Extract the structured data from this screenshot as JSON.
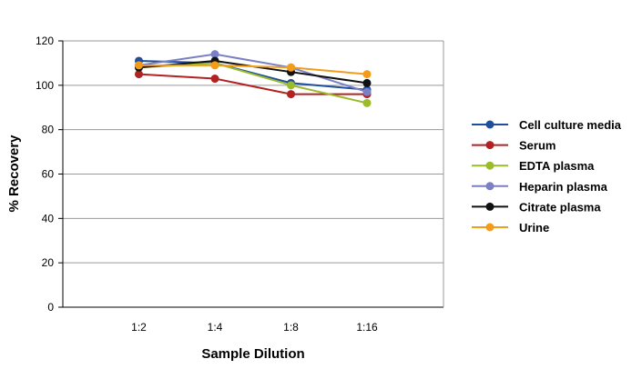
{
  "chart_data": {
    "type": "line",
    "categories": [
      "1:2",
      "1:4",
      "1:8",
      "1:16"
    ],
    "xlabel": "Sample Dilution",
    "ylabel": "% Recovery",
    "ylim": [
      0,
      120
    ],
    "yticks": [
      0,
      20,
      40,
      60,
      80,
      100,
      120
    ],
    "grid": true,
    "legend_position": "right",
    "series": [
      {
        "name": "Cell culture media",
        "color": "#1f4e9c",
        "values": [
          111,
          110,
          101,
          98
        ]
      },
      {
        "name": "Serum",
        "color": "#b22222",
        "values": [
          105,
          103,
          96,
          96
        ]
      },
      {
        "name": "EDTA plasma",
        "color": "#9abb2a",
        "values": [
          108,
          110,
          100,
          92
        ]
      },
      {
        "name": "Heparin plasma",
        "color": "#7b7fc4",
        "values": [
          109,
          114,
          108,
          97
        ]
      },
      {
        "name": "Citrate plasma",
        "color": "#111111",
        "values": [
          108,
          111,
          106,
          101
        ]
      },
      {
        "name": "Urine",
        "color": "#f39c1a",
        "values": [
          109,
          109,
          108,
          105
        ]
      }
    ]
  }
}
